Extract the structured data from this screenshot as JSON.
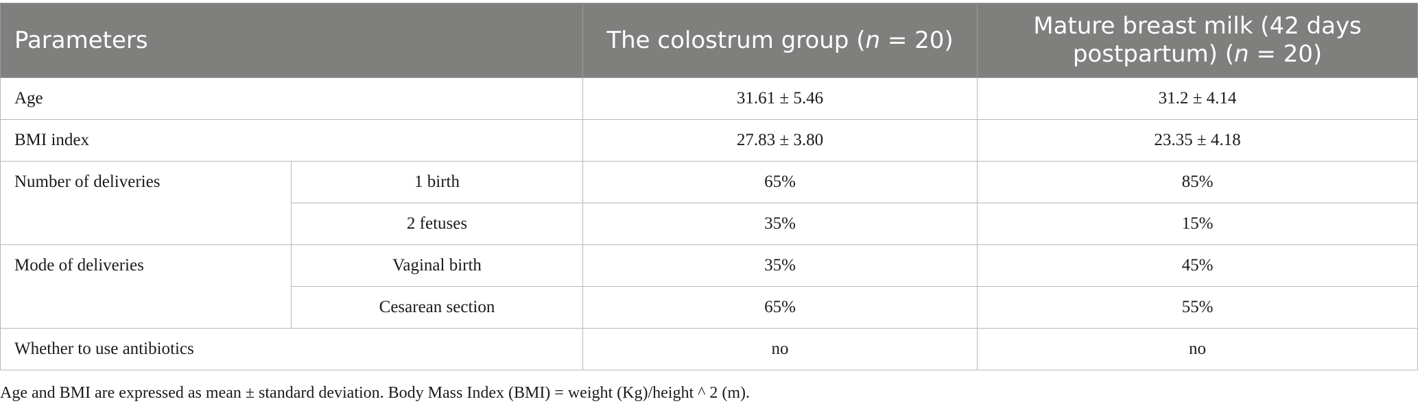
{
  "table": {
    "header": {
      "parameters": "Parameters",
      "colostrum_prefix": "The colostrum group (",
      "colostrum_n": "n",
      "colostrum_suffix": " = 20)",
      "mature_line1": "Mature breast milk (42 days",
      "mature_prefix": "postpartum) (",
      "mature_n": "n",
      "mature_suffix": " = 20)"
    },
    "rows": {
      "age": {
        "label": "Age",
        "colostrum": "31.61 ± 5.46",
        "mature": "31.2 ± 4.14"
      },
      "bmi": {
        "label": "BMI index",
        "colostrum": "27.83 ± 3.80",
        "mature": "23.35 ± 4.18"
      },
      "deliveries": {
        "label": "Number of deliveries",
        "sub1": {
          "label": "1 birth",
          "colostrum": "65%",
          "mature": "85%"
        },
        "sub2": {
          "label": "2 fetuses",
          "colostrum": "35%",
          "mature": "15%"
        }
      },
      "mode": {
        "label": "Mode of deliveries",
        "sub1": {
          "label": "Vaginal birth",
          "colostrum": "35%",
          "mature": "45%"
        },
        "sub2": {
          "label": "Cesarean section",
          "colostrum": "65%",
          "mature": "55%"
        }
      },
      "antibiotics": {
        "label": "Whether to use antibiotics",
        "colostrum": "no",
        "mature": "no"
      }
    }
  },
  "footnote": "Age and BMI are expressed as mean ± standard deviation. Body Mass Index (BMI) = weight (Kg)/height ^ 2 (m).",
  "colors": {
    "header_bg": "#7f7f7e",
    "header_text": "#ffffff",
    "border": "#b7b7b7"
  }
}
